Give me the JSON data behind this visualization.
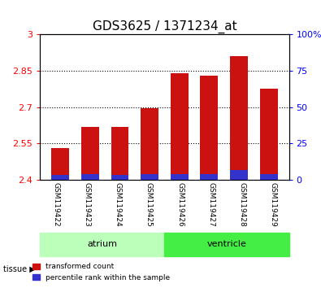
{
  "title": "GDS3625 / 1371234_at",
  "samples": [
    "GSM119422",
    "GSM119423",
    "GSM119424",
    "GSM119425",
    "GSM119426",
    "GSM119427",
    "GSM119428",
    "GSM119429"
  ],
  "red_values": [
    2.53,
    2.62,
    2.62,
    2.695,
    2.84,
    2.83,
    2.91,
    2.775
  ],
  "blue_values": [
    0.02,
    0.025,
    0.02,
    0.025,
    0.025,
    0.025,
    0.04,
    0.025
  ],
  "base_value": 2.4,
  "ylim_left": [
    2.4,
    3.0
  ],
  "ylim_right": [
    0,
    100
  ],
  "yticks_left": [
    2.4,
    2.55,
    2.7,
    2.85,
    3.0
  ],
  "yticks_right": [
    0,
    25,
    50,
    75,
    100
  ],
  "ytick_labels_left": [
    "2.4",
    "2.55",
    "2.7",
    "2.85",
    "3"
  ],
  "ytick_labels_right": [
    "0",
    "25",
    "50",
    "75",
    "100%"
  ],
  "groups": [
    {
      "label": "atrium",
      "samples": [
        0,
        1,
        2,
        3
      ],
      "color": "#aaffaa"
    },
    {
      "label": "ventricle",
      "samples": [
        4,
        5,
        6,
        7
      ],
      "color": "#44dd44"
    }
  ],
  "bar_width": 0.6,
  "red_color": "#cc1111",
  "blue_color": "#3333cc",
  "grid_color": "black",
  "bg_plot": "white",
  "bg_xtick": "#cccccc",
  "legend_labels": [
    "transformed count",
    "percentile rank within the sample"
  ],
  "tissue_label": "tissue",
  "bar_base": 2.4
}
